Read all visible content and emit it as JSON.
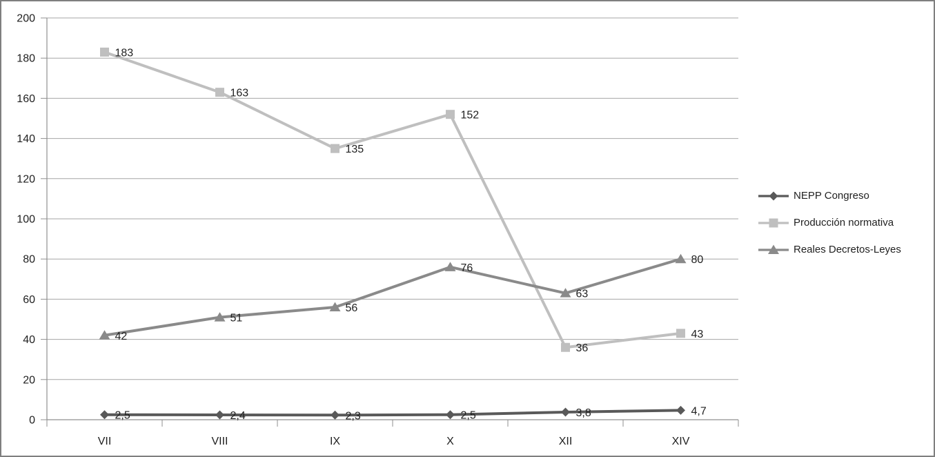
{
  "frame": {
    "border_color": "#7f7f7f",
    "background_color": "#ffffff"
  },
  "chart_data": {
    "type": "line",
    "title": "",
    "xlabel": "",
    "ylabel": "",
    "categories": [
      "VII",
      "VIII",
      "IX",
      "X",
      "XII",
      "XIV"
    ],
    "ylim": [
      0,
      200
    ],
    "ytick_step": 20,
    "ytick_labels": [
      "0",
      "20",
      "40",
      "60",
      "80",
      "100",
      "120",
      "140",
      "160",
      "180",
      "200"
    ],
    "grid": true,
    "legend_position": "right",
    "series": [
      {
        "name": "NEPP Congreso",
        "marker": "diamond",
        "color": "#595959",
        "values": [
          2.5,
          2.4,
          2.3,
          2.5,
          3.8,
          4.7
        ],
        "labels": [
          "2,5",
          "2,4",
          "2,3",
          "2,5",
          "3,8",
          "4,7"
        ]
      },
      {
        "name": "Producción normativa",
        "marker": "square",
        "color": "#bfbfbf",
        "values": [
          183,
          163,
          135,
          152,
          36,
          43
        ],
        "labels": [
          "183",
          "163",
          "135",
          "152",
          "36",
          "43"
        ]
      },
      {
        "name": "Reales Decretos-Leyes",
        "marker": "triangle",
        "color": "#8a8a8a",
        "values": [
          42,
          51,
          56,
          76,
          63,
          80
        ],
        "labels": [
          "42",
          "51",
          "56",
          "76",
          "63",
          "80"
        ]
      }
    ],
    "colors": {
      "gridline": "#a6a6a6",
      "axis": "#8f8f8f",
      "text": "#1f1f1f"
    }
  }
}
